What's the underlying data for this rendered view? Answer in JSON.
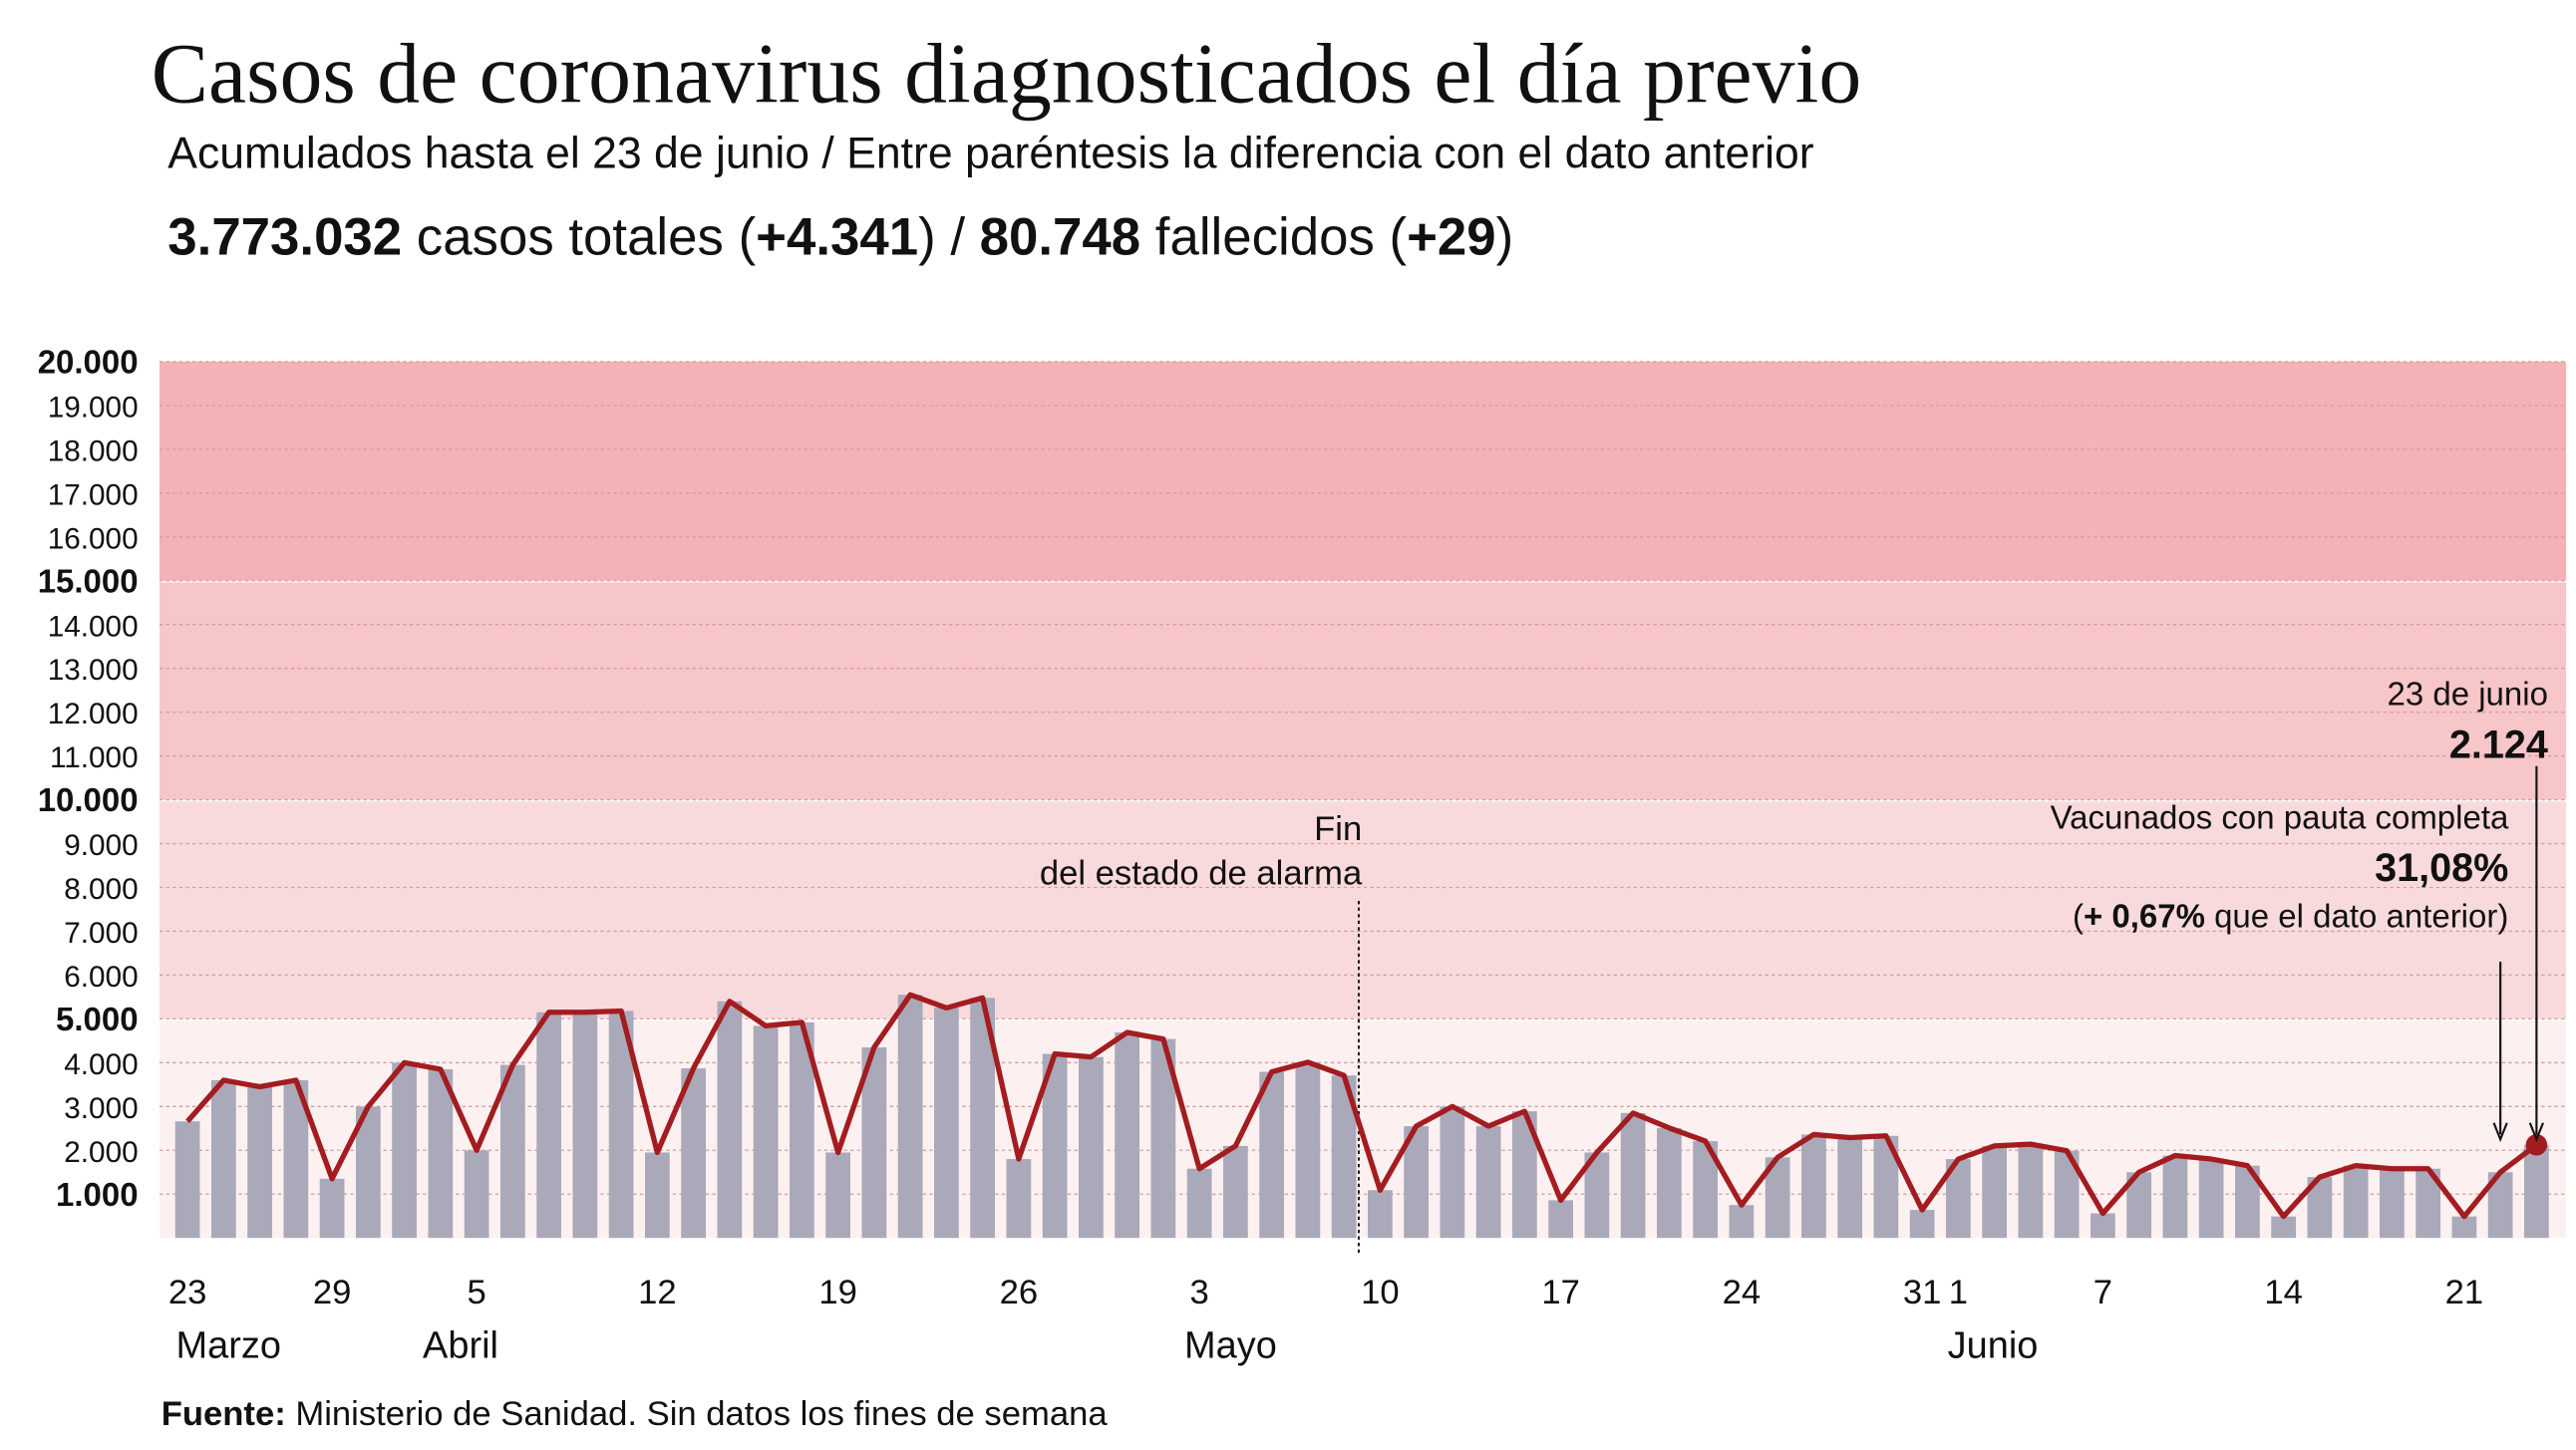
{
  "chart_data": {
    "type": "bar-line",
    "title": "Casos de coronavirus diagnosticados el día previo",
    "subtitle": "Acumulados hasta el 23 de junio / Entre paréntesis la diferencia con el dato anterior",
    "summary": [
      "3.773.032",
      " casos totales (",
      "+4.341",
      ") / ",
      "80.748",
      " fallecidos (",
      "+29",
      ")"
    ],
    "categories": [
      "23",
      null,
      null,
      null,
      "29",
      null,
      null,
      null,
      "5",
      null,
      null,
      null,
      null,
      "12",
      null,
      null,
      null,
      null,
      "19",
      null,
      null,
      null,
      null,
      "26",
      null,
      null,
      null,
      null,
      "3",
      null,
      null,
      null,
      null,
      "10",
      null,
      null,
      null,
      null,
      "17",
      null,
      null,
      null,
      null,
      "24",
      null,
      null,
      null,
      null,
      "31",
      "1",
      null,
      null,
      null,
      "7",
      null,
      null,
      null,
      null,
      "14",
      null,
      null,
      null,
      null,
      "21",
      null,
      null
    ],
    "months": [
      "Marzo",
      "Abril",
      "Mayo",
      "Junio"
    ],
    "values": [
      2660,
      3600,
      3450,
      3600,
      1350,
      3000,
      4000,
      3850,
      2000,
      3950,
      5150,
      5150,
      5180,
      1950,
      3870,
      5400,
      4840,
      4920,
      1950,
      4350,
      5550,
      5250,
      5480,
      1800,
      4200,
      4130,
      4690,
      4540,
      1580,
      2100,
      3790,
      4010,
      3710,
      1090,
      2550,
      3000,
      2550,
      2890,
      860,
      1950,
      2850,
      2510,
      2210,
      750,
      1840,
      2360,
      2290,
      2330,
      640,
      1800,
      2100,
      2140,
      1990,
      560,
      1500,
      1880,
      1800,
      1650,
      490,
      1390,
      1650,
      1580,
      1580,
      490,
      1500,
      2124
    ],
    "value_labels": [
      null,
      null,
      null,
      null,
      null,
      null,
      null,
      null,
      null,
      null,
      null,
      null,
      null,
      null,
      null,
      null,
      null,
      null,
      null,
      null,
      null,
      null,
      null,
      null,
      null,
      null,
      null,
      null,
      null,
      null,
      null,
      null,
      null,
      null,
      null,
      null,
      null,
      null,
      null,
      null,
      null,
      null,
      null,
      null,
      null,
      null,
      null,
      null,
      null,
      null,
      null,
      null,
      null,
      null,
      null,
      null,
      null,
      null,
      null,
      null,
      null,
      null,
      null,
      null,
      null,
      "2.124"
    ],
    "bar_color": "#a9a9ba",
    "line_color": "#a31c1f",
    "ylim": [
      0,
      20000
    ],
    "yticks": [
      {
        "value": 1000,
        "label": "1.000"
      },
      {
        "value": 2000,
        "label": "2.000"
      },
      {
        "value": 3000,
        "label": "3.000"
      },
      {
        "value": 4000,
        "label": "4.000"
      },
      {
        "value": 5000,
        "label": "5.000"
      },
      {
        "value": 6000,
        "label": "6.000"
      },
      {
        "value": 7000,
        "label": "7.000"
      },
      {
        "value": 8000,
        "label": "8.000"
      },
      {
        "value": 9000,
        "label": "9.000"
      },
      {
        "value": 10000,
        "label": "10.000"
      },
      {
        "value": 11000,
        "label": "11.000"
      },
      {
        "value": 12000,
        "label": "12.000"
      },
      {
        "value": 13000,
        "label": "13.000"
      },
      {
        "value": 14000,
        "label": "14.000"
      },
      {
        "value": 15000,
        "label": "15.000"
      },
      {
        "value": 16000,
        "label": "16.000"
      },
      {
        "value": 17000,
        "label": "17.000"
      },
      {
        "value": 18000,
        "label": "18.000"
      },
      {
        "value": 19000,
        "label": "19.000"
      },
      {
        "value": 20000,
        "label": "20.000"
      }
    ],
    "grid": true,
    "annotations": {
      "alarm": [
        "Fin",
        "del estado de alarma"
      ],
      "last_date": "23 de junio",
      "vaccine_title": "Vacunados con pauta completa",
      "vaccine_value": "31,08%",
      "vaccine_diff": [
        "(",
        "+ 0,67%",
        " que el dato anterior)"
      ]
    },
    "source": [
      "Fuente:",
      " Ministerio de Sanidad. Sin datos los fines de semana"
    ]
  }
}
